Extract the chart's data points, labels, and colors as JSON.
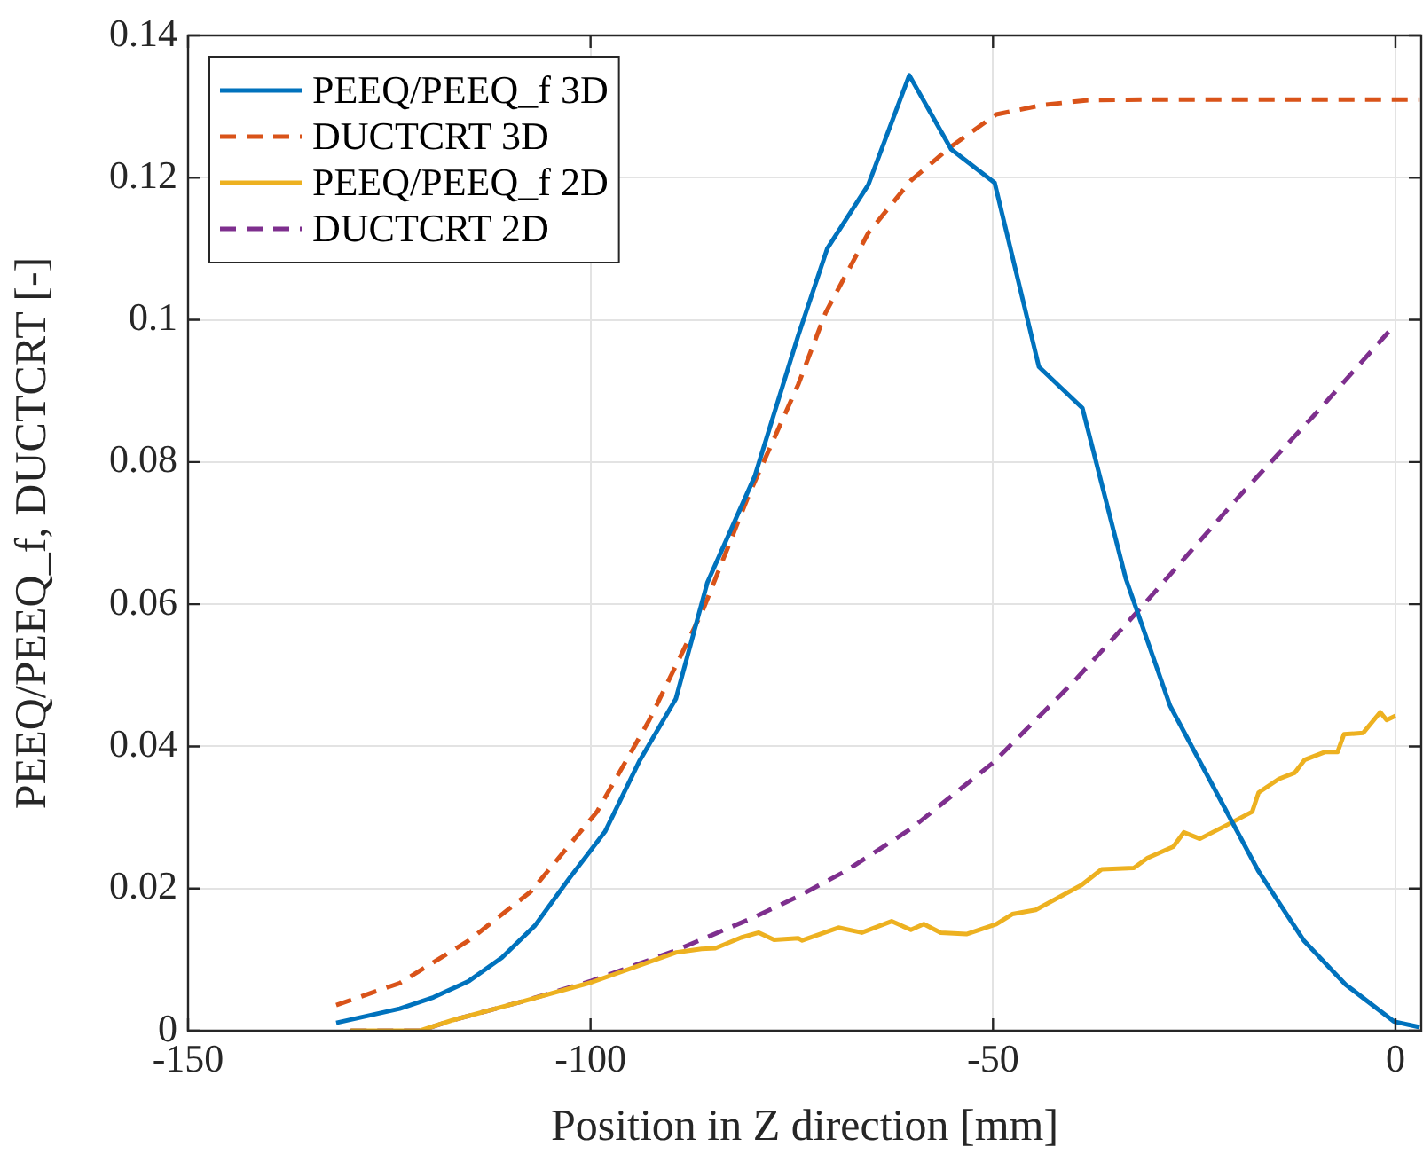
{
  "chart_data": {
    "type": "line",
    "xlabel": "Position in Z direction [mm]",
    "ylabel": "PEEQ/PEEQ_f, DUCTCRT [-]",
    "xlim": [
      -150,
      3.2
    ],
    "xticks": [
      -150,
      -100,
      -50,
      0
    ],
    "ylim": [
      0,
      0.14
    ],
    "yticks": [
      0,
      0.02,
      0.04,
      0.06,
      0.08,
      0.1,
      0.12,
      0.14
    ],
    "grid": true,
    "legend": "top left",
    "marker": "none",
    "series": [
      {
        "name": "PEEQ/PEEQ_f 3D",
        "color": "#0072bd",
        "line_style": "solid",
        "x": [
          -131.6,
          -123.7,
          -119.5,
          -115.1,
          -111.0,
          -106.9,
          -102.6,
          -98.2,
          -93.9,
          -89.4,
          -85.5,
          -79.6,
          -74.2,
          -70.6,
          -65.5,
          -60.4,
          -55.2,
          -49.8,
          -44.3,
          -38.9,
          -33.5,
          -28.0,
          -17.0,
          -11.4,
          -6.2,
          -0.2,
          3.0
        ],
        "values": [
          0.0011,
          0.0031,
          0.0047,
          0.007,
          0.0103,
          0.0148,
          0.0215,
          0.028,
          0.038,
          0.0467,
          0.063,
          0.078,
          0.0978,
          0.11,
          0.119,
          0.1344,
          0.124,
          0.1193,
          0.0934,
          0.0876,
          0.0636,
          0.0457,
          0.0224,
          0.0127,
          0.0065,
          0.0013,
          0.0005
        ]
      },
      {
        "name": "DUCTCRT 3D",
        "color": "#d95319",
        "line_style": "dashed",
        "x": [
          -131.6,
          -123.7,
          -115.1,
          -107.4,
          -99.2,
          -92.7,
          -86.1,
          -80.4,
          -74.2,
          -70.8,
          -65.5,
          -60.2,
          -55.3,
          -49.6,
          -43.9,
          -38.2,
          -30,
          -15,
          0,
          3.0
        ],
        "values": [
          0.0036,
          0.0067,
          0.0127,
          0.0196,
          0.0308,
          0.0437,
          0.059,
          0.0752,
          0.0909,
          0.101,
          0.1122,
          0.1196,
          0.1243,
          0.1289,
          0.1302,
          0.1309,
          0.131,
          0.131,
          0.131,
          0.131
        ]
      },
      {
        "name": "PEEQ/PEEQ_f 2D",
        "color": "#edb120",
        "line_style": "solid",
        "x": [
          -129.8,
          -121.2,
          -117.1,
          -108.2,
          -99.9,
          -89.4,
          -86.2,
          -84.5,
          -81.3,
          -79.1,
          -77.2,
          -74.2,
          -73.7,
          -69.2,
          -66.3,
          -62.6,
          -60.2,
          -58.6,
          -56.5,
          -53.3,
          -49.6,
          -47.6,
          -44.7,
          -39.0,
          -36.5,
          -32.5,
          -30.8,
          -27.6,
          -26.3,
          -24.3,
          -21.0,
          -17.8,
          -17.0,
          -14.5,
          -12.5,
          -11.3,
          -8.8,
          -7.2,
          -6.4,
          -4.0,
          -1.9,
          -1.1,
          0
        ],
        "values": [
          0,
          0,
          0.0015,
          0.0042,
          0.0068,
          0.011,
          0.0115,
          0.0116,
          0.0131,
          0.0138,
          0.0128,
          0.013,
          0.0127,
          0.0145,
          0.0138,
          0.0154,
          0.0142,
          0.015,
          0.0138,
          0.0136,
          0.015,
          0.0164,
          0.017,
          0.0205,
          0.0227,
          0.0229,
          0.0243,
          0.0259,
          0.0279,
          0.027,
          0.0289,
          0.0308,
          0.0335,
          0.0354,
          0.0363,
          0.0381,
          0.0392,
          0.0392,
          0.0417,
          0.0419,
          0.0448,
          0.0437,
          0.0443
        ]
      },
      {
        "name": "DUCTCRT 2D",
        "color": "#7e2f8e",
        "line_style": "dashed",
        "x": [
          -129.8,
          -121.2,
          -117.1,
          -108.2,
          -99.9,
          -89.4,
          -79.6,
          -74.2,
          -68.4,
          -60.2,
          -50,
          -39.8,
          -31.7,
          -19.4,
          -9.6,
          0
        ],
        "values": [
          0,
          0,
          0.0015,
          0.0042,
          0.007,
          0.0113,
          0.016,
          0.0189,
          0.0224,
          0.0284,
          0.0377,
          0.0493,
          0.0594,
          0.0752,
          0.0872,
          0.0994
        ]
      }
    ]
  }
}
